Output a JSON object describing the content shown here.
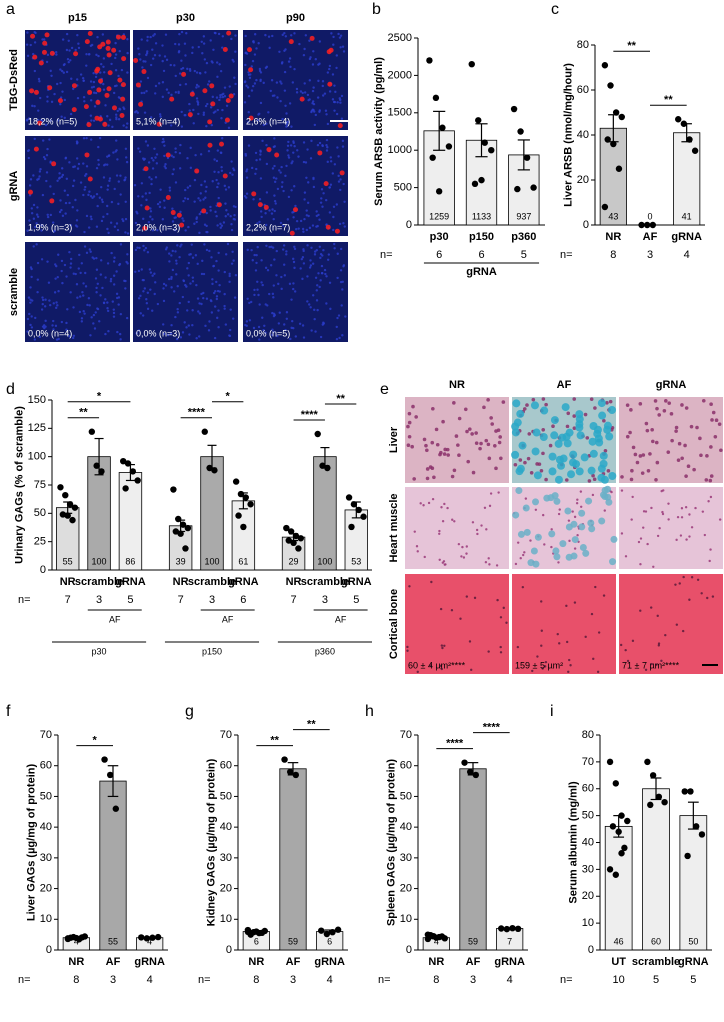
{
  "image_panels": [
    {
      "panel": "a",
      "columns": [
        "p15",
        "p30",
        "p90"
      ],
      "rows": [
        {
          "name": "TBG-DsRed",
          "labels": [
            "18,2% (n=5)",
            "5,1% (n=4)",
            "2,6% (n=4)"
          ]
        },
        {
          "name": "gRNA",
          "labels": [
            "1,9% (n=3)",
            "2,0% (n=3)",
            "2,2% (n=7)"
          ]
        },
        {
          "name": "scramble",
          "labels": [
            "0,0% (n=4)",
            "0,0% (n=3)",
            "0,0% (n=5)"
          ]
        }
      ]
    },
    {
      "panel": "e",
      "columns": [
        "NR",
        "AF",
        "gRNA"
      ],
      "rows": [
        {
          "name": "Liver"
        },
        {
          "name": "Heart muscle"
        },
        {
          "name": "Cortical bone",
          "labels": [
            "60 ± 4 µm²****",
            "159 ± 5 µm²",
            "71 ± 7 µm²****"
          ]
        }
      ]
    }
  ],
  "chart_data": [
    {
      "type": "bar",
      "panel": "b",
      "ylabel": "Serum ARSB activity (pg/ml)",
      "categories": [
        "p30",
        "p150",
        "p360"
      ],
      "values": [
        1259,
        1133,
        937
      ],
      "errors": [
        260,
        220,
        200
      ],
      "points": [
        [
          2200,
          1700,
          1300,
          1050,
          900,
          450
        ],
        [
          2150,
          1400,
          1100,
          1000,
          550,
          600
        ],
        [
          1550,
          1250,
          900,
          500,
          480
        ]
      ],
      "colors": [
        "#eeeeee",
        "#eeeeee",
        "#eeeeee"
      ],
      "ylim": [
        0,
        2500
      ],
      "yticks": [
        0,
        500,
        1000,
        1500,
        2000,
        2500
      ],
      "n_label": "n=",
      "n": [
        6,
        6,
        5
      ],
      "group": "gRNA",
      "significance": []
    },
    {
      "type": "bar",
      "panel": "c",
      "ylabel": "Liver ARSB (nmol/mg/hour)",
      "categories": [
        "NR",
        "AF",
        "gRNA"
      ],
      "values": [
        43,
        0,
        41
      ],
      "errors": [
        6,
        0,
        4
      ],
      "points": [
        [
          71,
          62,
          50,
          48,
          38,
          36,
          25,
          8
        ],
        [
          0,
          0,
          0
        ],
        [
          47,
          45,
          38,
          33
        ]
      ],
      "colors": [
        "#c8c8c8",
        "#a8a8a8",
        "#eeeeee"
      ],
      "ylim": [
        0,
        80
      ],
      "yticks": [
        0,
        20,
        40,
        60,
        80
      ],
      "n_label": "n=",
      "n": [
        8,
        3,
        4
      ],
      "significance": [
        {
          "label": "**",
          "between": [
            0,
            1
          ]
        },
        {
          "label": "**",
          "between": [
            1,
            2
          ]
        }
      ]
    },
    {
      "type": "bar",
      "panel": "d",
      "ylabel": "Urinary GAGs (% of scramble)",
      "categories": [
        "NR",
        "scramble",
        "gRNA",
        "NR",
        "scramble",
        "gRNA",
        "NR",
        "scramble",
        "gRNA"
      ],
      "values": [
        55,
        100,
        86,
        39,
        100,
        61,
        29,
        100,
        53
      ],
      "errors": [
        5,
        16,
        7,
        5,
        10,
        7,
        3,
        8,
        7
      ],
      "points": [
        [
          73,
          66,
          58,
          55,
          49,
          48,
          44
        ],
        [
          122,
          92,
          87
        ],
        [
          96,
          94,
          87,
          79,
          72
        ],
        [
          71,
          45,
          40,
          37,
          34,
          32,
          19
        ],
        [
          122,
          90,
          88
        ],
        [
          78,
          67,
          64,
          58,
          48,
          38
        ],
        [
          37,
          34,
          30,
          28,
          26,
          24,
          19
        ],
        [
          120,
          92,
          90
        ],
        [
          64,
          58,
          53,
          47,
          38
        ]
      ],
      "colors": [
        "#dddddd",
        "#aaaaaa",
        "#eeeeee",
        "#dddddd",
        "#aaaaaa",
        "#eeeeee",
        "#dddddd",
        "#aaaaaa",
        "#eeeeee"
      ],
      "ylim": [
        0,
        150
      ],
      "yticks": [
        0,
        25,
        50,
        75,
        100,
        125,
        150
      ],
      "n_label": "n=",
      "n": [
        7,
        3,
        5,
        7,
        3,
        6,
        7,
        3,
        5
      ],
      "groups": [
        {
          "name": "p30",
          "subgroup": "AF"
        },
        {
          "name": "p150",
          "subgroup": "AF"
        },
        {
          "name": "p360",
          "subgroup": "AF"
        }
      ],
      "significance": [
        {
          "label": "**",
          "between": [
            0,
            1
          ]
        },
        {
          "label": "*",
          "between": [
            0,
            2
          ]
        },
        {
          "label": "****",
          "between": [
            3,
            4
          ]
        },
        {
          "label": "*",
          "between": [
            4,
            5
          ]
        },
        {
          "label": "****",
          "between": [
            6,
            7
          ]
        },
        {
          "label": "**",
          "between": [
            7,
            8
          ]
        }
      ]
    },
    {
      "type": "bar",
      "panel": "f",
      "ylabel": "Liver GAGs (µg/mg of protein)",
      "categories": [
        "NR",
        "AF",
        "gRNA"
      ],
      "values": [
        4,
        55,
        4
      ],
      "errors": [
        0.2,
        5,
        0.1
      ],
      "points": [
        [
          3.8,
          4.2,
          3.5,
          4.4,
          4.0,
          3.9,
          4.1,
          3.6
        ],
        [
          62,
          57,
          46
        ],
        [
          4.1,
          3.8,
          4.0,
          4.2
        ]
      ],
      "colors": [
        "#eeeeee",
        "#a8a8a8",
        "#eeeeee"
      ],
      "ylim": [
        0,
        70
      ],
      "yticks": [
        0,
        10,
        20,
        30,
        40,
        50,
        60,
        70
      ],
      "n_label": "n=",
      "n": [
        8,
        3,
        4
      ],
      "significance": [
        {
          "label": "*",
          "between": [
            0,
            1
          ]
        }
      ]
    },
    {
      "type": "bar",
      "panel": "g",
      "ylabel": "Kidney GAGs (µg/mg of protein)",
      "categories": [
        "NR",
        "AF",
        "gRNA"
      ],
      "values": [
        6,
        59,
        6
      ],
      "errors": [
        0.3,
        2,
        0.5
      ],
      "points": [
        [
          6.5,
          5.8,
          5.5,
          6.2,
          5.0,
          6.0,
          5.6,
          5.9
        ],
        [
          62,
          58,
          57
        ],
        [
          6.3,
          5.2,
          5.8,
          6.6
        ]
      ],
      "colors": [
        "#eeeeee",
        "#a8a8a8",
        "#eeeeee"
      ],
      "ylim": [
        0,
        70
      ],
      "yticks": [
        0,
        10,
        20,
        30,
        40,
        50,
        60,
        70
      ],
      "n_label": "n=",
      "n": [
        8,
        3,
        4
      ],
      "significance": [
        {
          "label": "**",
          "between": [
            0,
            1
          ]
        },
        {
          "label": "**",
          "between": [
            1,
            2
          ]
        }
      ]
    },
    {
      "type": "bar",
      "panel": "h",
      "ylabel": "Spleen GAGs (µg/mg of protein)",
      "categories": [
        "NR",
        "AF",
        "gRNA"
      ],
      "values": [
        4,
        59,
        7
      ],
      "errors": [
        0.3,
        2,
        0.1
      ],
      "points": [
        [
          5.0,
          4.5,
          4.2,
          3.8,
          4.8,
          4.0,
          4.4,
          3.6
        ],
        [
          61,
          58,
          57
        ],
        [
          7,
          6.8,
          7.1,
          6.9
        ]
      ],
      "colors": [
        "#eeeeee",
        "#a8a8a8",
        "#eeeeee"
      ],
      "ylim": [
        0,
        70
      ],
      "yticks": [
        0,
        10,
        20,
        30,
        40,
        50,
        60,
        70
      ],
      "n_label": "n=",
      "n": [
        8,
        3,
        4
      ],
      "significance": [
        {
          "label": "****",
          "between": [
            0,
            1
          ]
        },
        {
          "label": "****",
          "between": [
            1,
            2
          ]
        }
      ]
    },
    {
      "type": "bar",
      "panel": "i",
      "ylabel": "Serum albumin (mg/ml)",
      "categories": [
        "UT",
        "scramble",
        "gRNA"
      ],
      "values": [
        46,
        60,
        50
      ],
      "errors": [
        4,
        4,
        5
      ],
      "points": [
        [
          70,
          62,
          50,
          48,
          46,
          44,
          38,
          30,
          28,
          36
        ],
        [
          70,
          65,
          57,
          55,
          54
        ],
        [
          59,
          59,
          46,
          43,
          35
        ]
      ],
      "colors": [
        "#eeeeee",
        "#eeeeee",
        "#eeeeee"
      ],
      "ylim": [
        0,
        80
      ],
      "yticks": [
        0,
        10,
        20,
        30,
        40,
        50,
        60,
        70,
        80
      ],
      "n_label": "n=",
      "n": [
        10,
        5,
        5
      ],
      "significance": []
    }
  ]
}
